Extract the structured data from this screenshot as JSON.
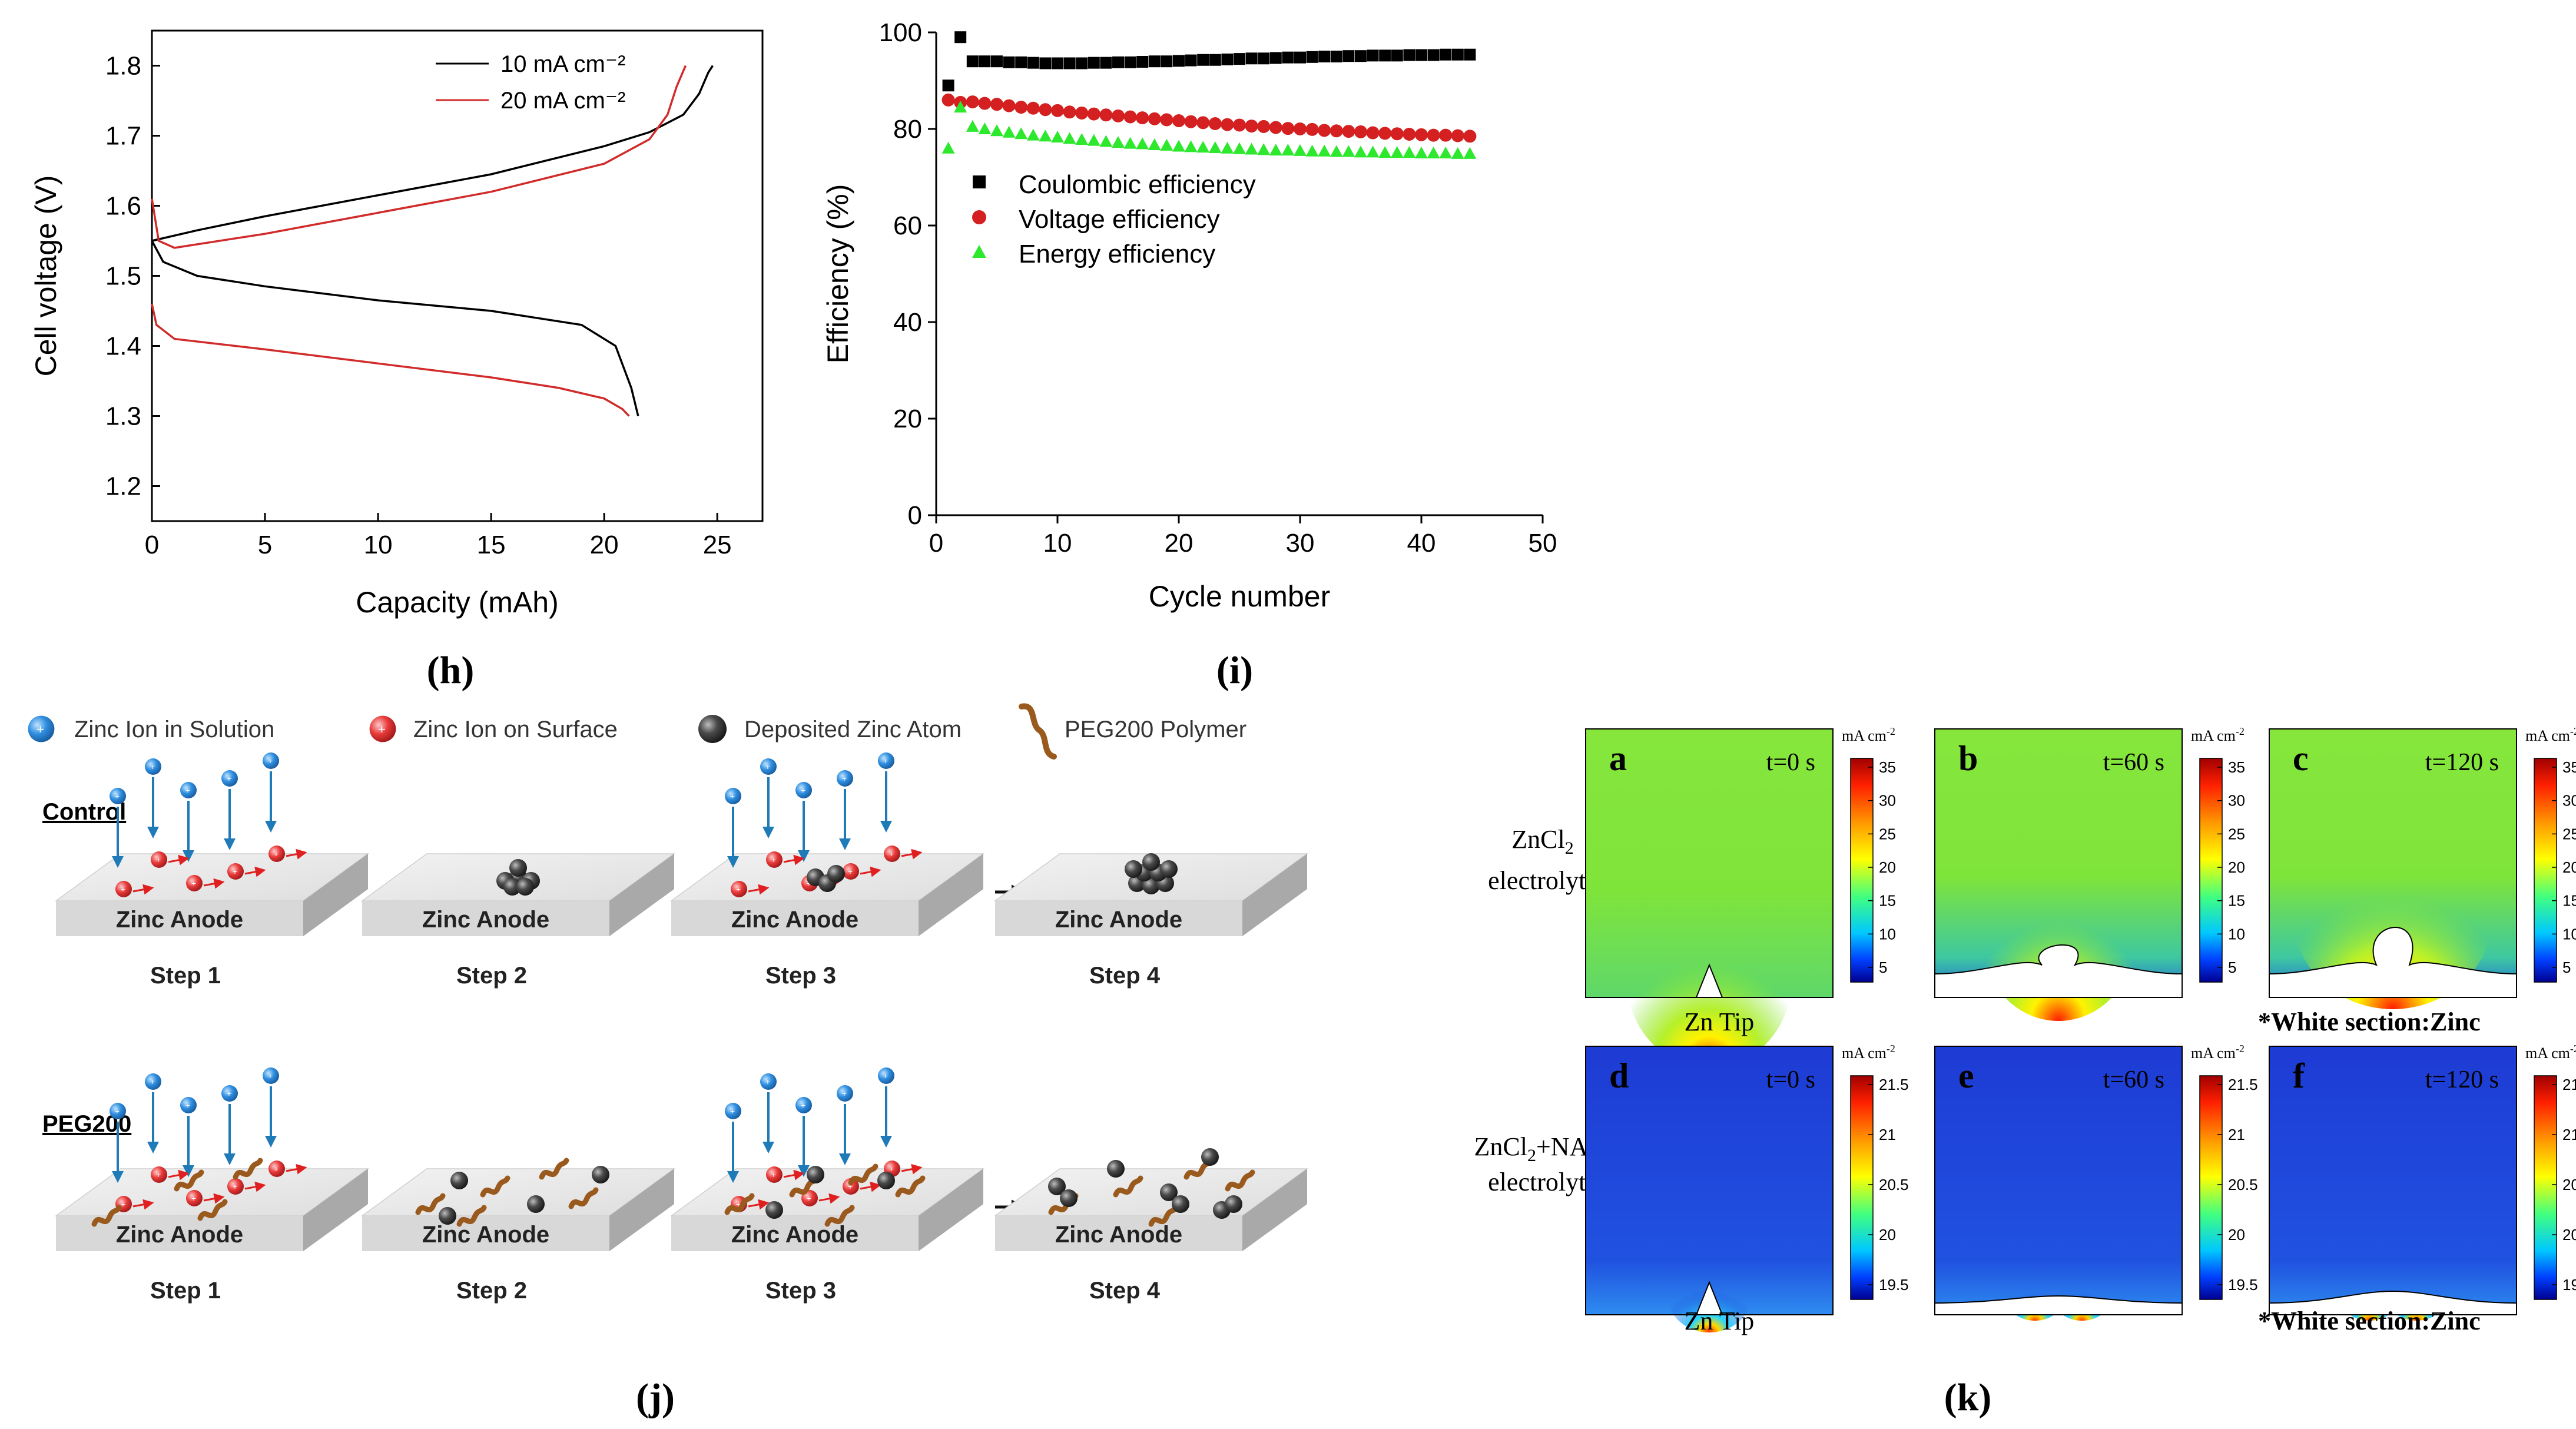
{
  "panel_h": {
    "caption": "(h)",
    "chart_data": {
      "type": "line",
      "xlabel": "Capacity (mAh)",
      "ylabel": "Cell voltage (V)",
      "xlim": [
        0,
        27
      ],
      "ylim": [
        1.15,
        1.85
      ],
      "xticks": [
        "0",
        "5",
        "10",
        "15",
        "20",
        "25"
      ],
      "yticks": [
        "1.2",
        "1.3",
        "1.4",
        "1.5",
        "1.6",
        "1.7",
        "1.8"
      ],
      "legend": [
        "10 mA cm⁻²",
        "20 mA cm⁻²"
      ],
      "series": [
        {
          "name": "10 mA cm⁻² charge",
          "color": "#000000",
          "x": [
            0,
            2,
            5,
            10,
            15,
            20,
            22,
            23.5,
            24.2,
            24.6,
            24.8
          ],
          "y": [
            1.55,
            1.565,
            1.585,
            1.615,
            1.645,
            1.685,
            1.705,
            1.73,
            1.76,
            1.79,
            1.8
          ]
        },
        {
          "name": "10 mA cm⁻² discharge",
          "color": "#000000",
          "x": [
            0,
            0.5,
            2,
            5,
            10,
            15,
            19,
            20.5,
            21.2,
            21.5
          ],
          "y": [
            1.55,
            1.52,
            1.5,
            1.485,
            1.465,
            1.45,
            1.43,
            1.4,
            1.34,
            1.3
          ]
        },
        {
          "name": "20 mA cm⁻² charge",
          "color": "#d12b2b",
          "x": [
            0,
            0.3,
            1,
            5,
            10,
            15,
            20,
            22,
            22.8,
            23.2,
            23.6
          ],
          "y": [
            1.61,
            1.55,
            1.54,
            1.56,
            1.59,
            1.62,
            1.66,
            1.695,
            1.73,
            1.77,
            1.8
          ]
        },
        {
          "name": "20 mA cm⁻² discharge",
          "color": "#d12b2b",
          "x": [
            0,
            0.2,
            1,
            5,
            10,
            15,
            18,
            20,
            20.8,
            21.1
          ],
          "y": [
            1.46,
            1.43,
            1.41,
            1.395,
            1.375,
            1.355,
            1.34,
            1.325,
            1.31,
            1.3
          ]
        }
      ]
    }
  },
  "panel_i": {
    "caption": "(i)",
    "chart_data": {
      "type": "scatter",
      "xlabel": "Cycle number",
      "ylabel": "Efficiency (%)",
      "xlim": [
        0,
        50
      ],
      "ylim": [
        0,
        100
      ],
      "xticks": [
        "0",
        "10",
        "20",
        "30",
        "40",
        "50"
      ],
      "yticks": [
        "0",
        "20",
        "40",
        "60",
        "80",
        "100"
      ],
      "legend": [
        "Coulombic efficiency",
        "Voltage efficiency",
        "Energy efficiency"
      ],
      "series": [
        {
          "name": "Coulombic efficiency",
          "color": "#000000",
          "marker": "square",
          "x": [
            1,
            2,
            3,
            4,
            5,
            6,
            7,
            8,
            9,
            10,
            11,
            12,
            13,
            14,
            15,
            16,
            17,
            18,
            19,
            20,
            21,
            22,
            23,
            24,
            25,
            26,
            27,
            28,
            29,
            30,
            31,
            32,
            33,
            34,
            35,
            36,
            37,
            38,
            39,
            40,
            41,
            42,
            43,
            44
          ],
          "y": [
            89,
            99,
            94,
            94,
            94,
            93.8,
            93.8,
            93.7,
            93.6,
            93.6,
            93.6,
            93.6,
            93.7,
            93.7,
            93.8,
            93.8,
            93.9,
            94,
            94,
            94.1,
            94.2,
            94.3,
            94.3,
            94.4,
            94.5,
            94.6,
            94.6,
            94.7,
            94.8,
            94.8,
            94.9,
            95,
            95,
            95.1,
            95.1,
            95.2,
            95.2,
            95.2,
            95.3,
            95.3,
            95.3,
            95.4,
            95.4,
            95.4
          ]
        },
        {
          "name": "Voltage efficiency",
          "color": "#d42020",
          "marker": "circle",
          "x": [
            1,
            2,
            3,
            4,
            5,
            6,
            7,
            8,
            9,
            10,
            11,
            12,
            13,
            14,
            15,
            16,
            17,
            18,
            19,
            20,
            21,
            22,
            23,
            24,
            25,
            26,
            27,
            28,
            29,
            30,
            31,
            32,
            33,
            34,
            35,
            36,
            37,
            38,
            39,
            40,
            41,
            42,
            43,
            44
          ],
          "y": [
            86,
            85.5,
            85.6,
            85.3,
            85.1,
            84.8,
            84.5,
            84.3,
            84,
            83.8,
            83.5,
            83.3,
            83.1,
            82.9,
            82.7,
            82.5,
            82.3,
            82.1,
            81.9,
            81.7,
            81.5,
            81.3,
            81.1,
            80.9,
            80.8,
            80.6,
            80.5,
            80.3,
            80.1,
            80,
            79.9,
            79.7,
            79.6,
            79.5,
            79.4,
            79.2,
            79.1,
            79,
            78.9,
            78.8,
            78.7,
            78.7,
            78.6,
            78.5
          ]
        },
        {
          "name": "Energy efficiency",
          "color": "#2ee82e",
          "marker": "triangle",
          "x": [
            1,
            2,
            3,
            4,
            5,
            6,
            7,
            8,
            9,
            10,
            11,
            12,
            13,
            14,
            15,
            16,
            17,
            18,
            19,
            20,
            21,
            22,
            23,
            24,
            25,
            26,
            27,
            28,
            29,
            30,
            31,
            32,
            33,
            34,
            35,
            36,
            37,
            38,
            39,
            40,
            41,
            42,
            43,
            44
          ],
          "y": [
            76,
            84.5,
            80.5,
            80,
            79.6,
            79.3,
            79,
            78.7,
            78.5,
            78.3,
            78,
            77.8,
            77.6,
            77.4,
            77.2,
            77,
            76.9,
            76.7,
            76.6,
            76.4,
            76.3,
            76.2,
            76.1,
            76,
            75.9,
            75.8,
            75.7,
            75.6,
            75.6,
            75.5,
            75.4,
            75.4,
            75.3,
            75.3,
            75.2,
            75.2,
            75.1,
            75.1,
            75.1,
            75,
            75,
            75,
            74.9,
            74.9
          ]
        }
      ]
    }
  },
  "panel_j": {
    "caption": "(j)",
    "legend": {
      "zinc_ion_solution": "Zinc Ion in Solution",
      "zinc_ion_surface": "Zinc Ion on Surface",
      "deposited_zinc": "Deposited Zinc Atom",
      "peg_polymer": "PEG200 Polymer"
    },
    "rows": [
      {
        "label": "Control",
        "blocks": [
          {
            "anode": "Zinc Anode",
            "step": "Step 1"
          },
          {
            "anode": "Zinc Anode",
            "step": "Step 2"
          },
          {
            "anode": "Zinc Anode",
            "step": "Step 3"
          },
          {
            "anode": "Zinc Anode",
            "step": "Step 4"
          }
        ]
      },
      {
        "label": "PEG200",
        "blocks": [
          {
            "anode": "Zinc Anode",
            "step": "Step 1"
          },
          {
            "anode": "Zinc Anode",
            "step": "Step 2"
          },
          {
            "anode": "Zinc Anode",
            "step": "Step 3"
          },
          {
            "anode": "Zinc Anode",
            "step": "Step 4"
          }
        ]
      }
    ]
  },
  "panel_k": {
    "caption": "(k)",
    "row_labels": [
      {
        "line1_main": "ZnCl",
        "line1_sub": "2",
        "line2": "electrolyte"
      },
      {
        "line1_main": "ZnCl",
        "line1_sub": "2",
        "line1_rest": "+NAM",
        "line2": "electrolyte"
      }
    ],
    "colorbar_unit": "mA cm",
    "colorbar_unit_sup": "-2",
    "colorbar_top_ticks": [
      "35",
      "30",
      "25",
      "20",
      "15",
      "10",
      "5"
    ],
    "colorbar_bottom_ticks": [
      "21.5",
      "21",
      "20.5",
      "20",
      "19.5"
    ],
    "zn_tip_label": "Zn Tip",
    "white_section_note": "*White section:Zinc",
    "maps": [
      {
        "letter": "a",
        "time": "t=0 s"
      },
      {
        "letter": "b",
        "time": "t=60 s"
      },
      {
        "letter": "c",
        "time": "t=120 s"
      },
      {
        "letter": "d",
        "time": "t=0 s"
      },
      {
        "letter": "e",
        "time": "t=60 s"
      },
      {
        "letter": "f",
        "time": "t=120 s"
      }
    ]
  },
  "colors": {
    "field_green": "#7fe43a",
    "field_blue": "#1d3fd8",
    "ion_blue": "#2f8ee0",
    "ion_red": "#e83a3a",
    "atom_dark": "#3a3a3a",
    "polymer": "#9a5a1e"
  }
}
